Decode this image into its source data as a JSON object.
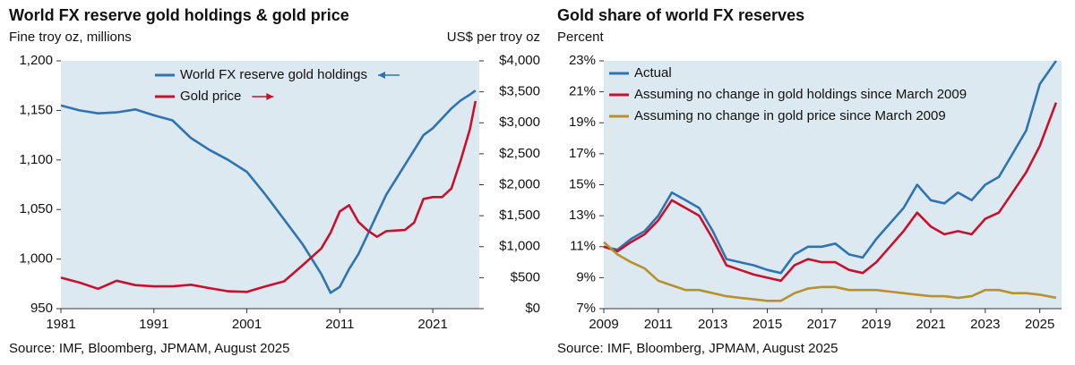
{
  "chart_data": [
    {
      "type": "line",
      "title": "World FX reserve gold holdings & gold price",
      "y_label": "Fine troy oz, millions",
      "y2_label": "US$ per troy oz",
      "source": "Source: IMF, Bloomberg, JPMAM, August 2025",
      "legend": "upper center",
      "background": "#dde9f1",
      "x": [
        1981,
        1983,
        1985,
        1987,
        1989,
        1991,
        1993,
        1995,
        1997,
        1999,
        2001,
        2003,
        2005,
        2007,
        2009,
        2010,
        2011,
        2012,
        2013,
        2014,
        2015,
        2016,
        2017,
        2018,
        2019,
        2020,
        2021,
        2022,
        2023,
        2024,
        2025,
        2025.6
      ],
      "xlim": [
        1981,
        2026
      ],
      "xticks": [
        1981,
        1991,
        2001,
        2011,
        2021
      ],
      "ylim": [
        950,
        1200
      ],
      "yticks": [
        950,
        {
          "value": 1000,
          "label": "1,000"
        },
        {
          "value": 1050,
          "label": "1,050"
        },
        {
          "value": 1100,
          "label": "1,100"
        },
        {
          "value": 1150,
          "label": "1,150"
        },
        {
          "value": 1200,
          "label": "1,200"
        }
      ],
      "y2lim": [
        0,
        4000
      ],
      "y2ticks": [
        {
          "value": 0,
          "label": "$0"
        },
        {
          "value": 500,
          "label": "$500"
        },
        {
          "value": 1000,
          "label": "$1,000"
        },
        {
          "value": 1500,
          "label": "$1,500"
        },
        {
          "value": 2000,
          "label": "$2,000"
        },
        {
          "value": 2500,
          "label": "$2,500"
        },
        {
          "value": 3000,
          "label": "$3,000"
        },
        {
          "value": 3500,
          "label": "$3,500"
        },
        {
          "value": 4000,
          "label": "$4,000"
        }
      ],
      "series": [
        {
          "name": "World FX reserve gold holdings",
          "color": "#2f74b0",
          "values": [
            1155,
            1150,
            1147,
            1148,
            1151,
            1145,
            1140,
            1122,
            1110,
            1100,
            1088,
            1065,
            1040,
            1015,
            985,
            966,
            972,
            990,
            1005,
            1025,
            1045,
            1065,
            1080,
            1095,
            1110,
            1125,
            1132,
            1142,
            1152,
            1160,
            1166,
            1170
          ]
        },
        {
          "name": "Gold price",
          "color": "#c8102e",
          "axis": "y2",
          "values": [
            500,
            420,
            320,
            450,
            380,
            360,
            360,
            385,
            330,
            280,
            270,
            360,
            440,
            700,
            970,
            1225,
            1570,
            1670,
            1400,
            1260,
            1160,
            1250,
            1260,
            1270,
            1390,
            1770,
            1800,
            1800,
            1940,
            2390,
            2900,
            3350
          ]
        }
      ]
    },
    {
      "type": "line",
      "title": "Gold share of world FX reserves",
      "y_label": "Percent",
      "source": "Source: IMF, Bloomberg, JPMAM, August 2025",
      "legend": "upper left",
      "background": "#dde9f1",
      "x": [
        2009,
        2009.5,
        2010,
        2010.5,
        2011,
        2011.5,
        2012,
        2012.5,
        2013,
        2013.5,
        2014,
        2014.5,
        2015,
        2015.5,
        2016,
        2016.5,
        2017,
        2017.5,
        2018,
        2018.5,
        2019,
        2019.5,
        2020,
        2020.5,
        2021,
        2021.5,
        2022,
        2022.5,
        2023,
        2023.5,
        2024,
        2024.5,
        2025,
        2025.6
      ],
      "xlim": [
        2009,
        2025.8
      ],
      "xticks": [
        2009,
        2011,
        2013,
        2015,
        2017,
        2019,
        2021,
        2023,
        2025
      ],
      "ylim": [
        7,
        23
      ],
      "yticks": [
        {
          "value": 7,
          "label": "7%"
        },
        {
          "value": 9,
          "label": "9%"
        },
        {
          "value": 11,
          "label": "11%"
        },
        {
          "value": 13,
          "label": "13%"
        },
        {
          "value": 15,
          "label": "15%"
        },
        {
          "value": 17,
          "label": "17%"
        },
        {
          "value": 19,
          "label": "19%"
        },
        {
          "value": 21,
          "label": "21%"
        },
        {
          "value": 23,
          "label": "23%"
        }
      ],
      "series": [
        {
          "name": "Actual",
          "color": "#2f74b0",
          "values": [
            11.0,
            10.8,
            11.5,
            12.0,
            13.0,
            14.5,
            14.0,
            13.5,
            12.0,
            10.2,
            10.0,
            9.8,
            9.5,
            9.3,
            10.5,
            11.0,
            11.0,
            11.2,
            10.5,
            10.3,
            11.5,
            12.5,
            13.5,
            15.0,
            14.0,
            13.8,
            14.5,
            14.0,
            15.0,
            15.5,
            17.0,
            18.5,
            21.5,
            23.0
          ]
        },
        {
          "name": "Assuming no change in gold holdings since March 2009",
          "color": "#c8102e",
          "values": [
            11.0,
            10.7,
            11.3,
            11.8,
            12.7,
            14.0,
            13.5,
            13.0,
            11.5,
            9.8,
            9.5,
            9.2,
            9.0,
            8.8,
            9.8,
            10.2,
            10.0,
            10.0,
            9.5,
            9.3,
            10.0,
            11.0,
            12.0,
            13.2,
            12.3,
            11.8,
            12.0,
            11.8,
            12.8,
            13.2,
            14.5,
            15.8,
            17.5,
            20.3
          ]
        },
        {
          "name": "Assuming no change in gold price since March 2009",
          "color": "#b5912f",
          "values": [
            11.3,
            10.5,
            10.0,
            9.6,
            8.8,
            8.5,
            8.2,
            8.2,
            8.0,
            7.8,
            7.7,
            7.6,
            7.5,
            7.5,
            8.0,
            8.3,
            8.4,
            8.4,
            8.2,
            8.2,
            8.2,
            8.1,
            8.0,
            7.9,
            7.8,
            7.8,
            7.7,
            7.8,
            8.2,
            8.2,
            8.0,
            8.0,
            7.9,
            7.7
          ]
        }
      ]
    }
  ]
}
